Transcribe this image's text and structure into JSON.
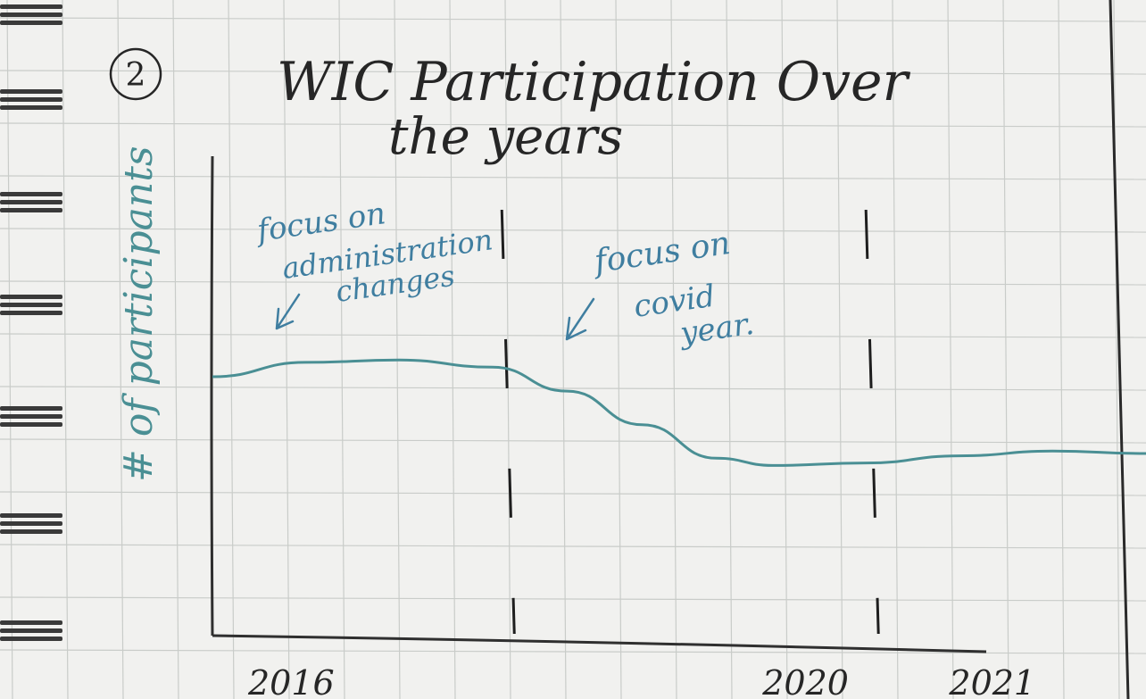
{
  "page": {
    "number": "2",
    "title_line1": "WIC Participation Over",
    "title_line2": "the years"
  },
  "chart_data": {
    "type": "line",
    "title": "WIC Participation Over the years",
    "xlabel": "",
    "ylabel": "# of participants",
    "x_ticks": [
      {
        "label": "2016",
        "pos": 0.0
      },
      {
        "label": "2020",
        "pos": 0.57
      },
      {
        "label": "2021",
        "pos": 0.77
      }
    ],
    "grid": true,
    "series": [
      {
        "values": [
          {
            "x": 0.0,
            "y": 0.54
          },
          {
            "x": 0.1,
            "y": 0.57
          },
          {
            "x": 0.2,
            "y": 0.575
          },
          {
            "x": 0.3,
            "y": 0.56
          },
          {
            "x": 0.38,
            "y": 0.51
          },
          {
            "x": 0.46,
            "y": 0.44
          },
          {
            "x": 0.54,
            "y": 0.37
          },
          {
            "x": 0.6,
            "y": 0.355
          },
          {
            "x": 0.7,
            "y": 0.36
          },
          {
            "x": 0.8,
            "y": 0.375
          },
          {
            "x": 0.9,
            "y": 0.385
          },
          {
            "x": 1.0,
            "y": 0.38
          }
        ]
      }
    ],
    "vertical_markers": [
      0.31,
      0.7
    ],
    "annotations": [
      {
        "lines": [
          "focus on",
          "administration",
          "changes"
        ],
        "arrow": "down-left"
      },
      {
        "lines": [
          "focus on",
          "covid",
          "year."
        ],
        "arrow": "down-left"
      }
    ],
    "colors": {
      "line": "#4a8f94",
      "annotation": "#3f7ea0",
      "ink": "#262626"
    }
  }
}
